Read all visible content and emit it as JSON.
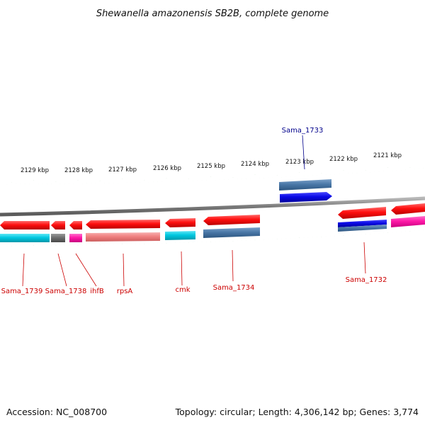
{
  "title": "Shewanella amazonensis SB2B, complete genome",
  "footer": {
    "accession": "Accession: NC_008700",
    "summary": "Topology: circular; Length: 4,306,142 bp; Genes: 3,774"
  },
  "colors": {
    "backbone": "#8a8a8a",
    "tick": "#1c7a1c",
    "label_red": "#cc0000",
    "label_blue": "#00008b",
    "cds_red": "#ff1010",
    "rna_blue": "#0a0ae6",
    "steel": "#4a78a8",
    "cyan": "#00c8e0",
    "gray": "#6a6a6a",
    "magenta": "#ff1aa8",
    "salmon": "#f08080"
  },
  "scale": {
    "unit": "kbp",
    "labels": [
      "2129 kbp",
      "2128 kbp",
      "2127 kbp",
      "2126 kbp",
      "2125 kbp",
      "2124 kbp",
      "2123 kbp",
      "2122 kbp",
      "2121 kbp"
    ]
  },
  "genes": [
    {
      "name": "Sama_1739",
      "color": "label_red"
    },
    {
      "name": "Sama_1738",
      "color": "label_red"
    },
    {
      "name": "ihfB",
      "color": "label_red"
    },
    {
      "name": "rpsA",
      "color": "label_red"
    },
    {
      "name": "cmk",
      "color": "label_red"
    },
    {
      "name": "Sama_1734",
      "color": "label_red"
    },
    {
      "name": "Sama_1733",
      "color": "label_blue"
    },
    {
      "name": "Sama_1732",
      "color": "label_red"
    }
  ]
}
